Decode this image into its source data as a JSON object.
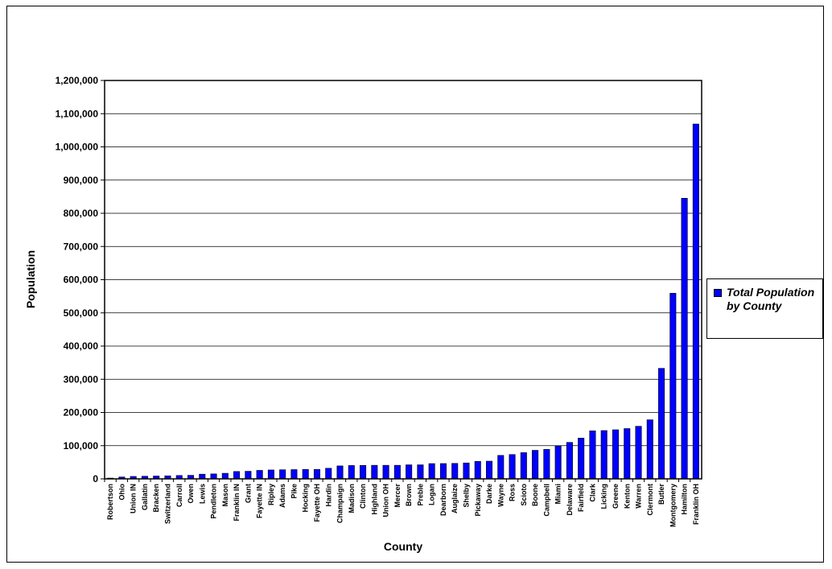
{
  "chart_data": {
    "type": "bar",
    "xlabel": "County",
    "ylabel": "Population",
    "ylim": [
      0,
      1200000
    ],
    "yticks": [
      "0",
      "100,000",
      "200,000",
      "300,000",
      "400,000",
      "500,000",
      "600,000",
      "700,000",
      "800,000",
      "900,000",
      "1,000,000",
      "1,100,000",
      "1,200,000"
    ],
    "ytick_values": [
      0,
      100000,
      200000,
      300000,
      400000,
      500000,
      600000,
      700000,
      800000,
      900000,
      1000000,
      1100000,
      1200000
    ],
    "grid": "horizontal",
    "legend_position": "right",
    "bar_color": "#0000ff",
    "categories": [
      "Robertson",
      "Ohio",
      "Union IN",
      "Gallatin",
      "Bracken",
      "Switzerland",
      "Carroll",
      "Owen",
      "Lewis",
      "Pendleton",
      "Mason",
      "Franklin IN",
      "Grant",
      "Fayette IN",
      "Ripley",
      "Adams",
      "Pike",
      "Hocking",
      "Fayette OH",
      "Hardin",
      "Champaign",
      "Madison",
      "Clinton",
      "Highland",
      "Union OH",
      "Mercer",
      "Brown",
      "Preble",
      "Logan",
      "Dearborn",
      "Auglaize",
      "Shelby",
      "Pickaway",
      "Darke",
      "Wayne",
      "Ross",
      "Scioto",
      "Boone",
      "Campbell",
      "Miami",
      "Delaware",
      "Fairfield",
      "Clark",
      "Licking",
      "Greene",
      "Kenton",
      "Warren",
      "Clermont",
      "Butler",
      "Montgomery",
      "Hamilton",
      "Franklin OH"
    ],
    "series": [
      {
        "name": "Total Population by County",
        "values": [
          2300,
          5600,
          7300,
          7900,
          8500,
          9100,
          10200,
          10700,
          14100,
          14900,
          16800,
          22200,
          22900,
          25600,
          26800,
          27400,
          27900,
          28400,
          28400,
          31900,
          39000,
          40200,
          40600,
          40900,
          40900,
          40900,
          42300,
          42300,
          46000,
          46100,
          46600,
          47900,
          52700,
          53300,
          70700,
          73300,
          79000,
          86000,
          88800,
          99000,
          109900,
          122800,
          144700,
          145500,
          147900,
          151500,
          158400,
          177900,
          332800,
          559100,
          845300,
          1068900
        ]
      }
    ]
  }
}
